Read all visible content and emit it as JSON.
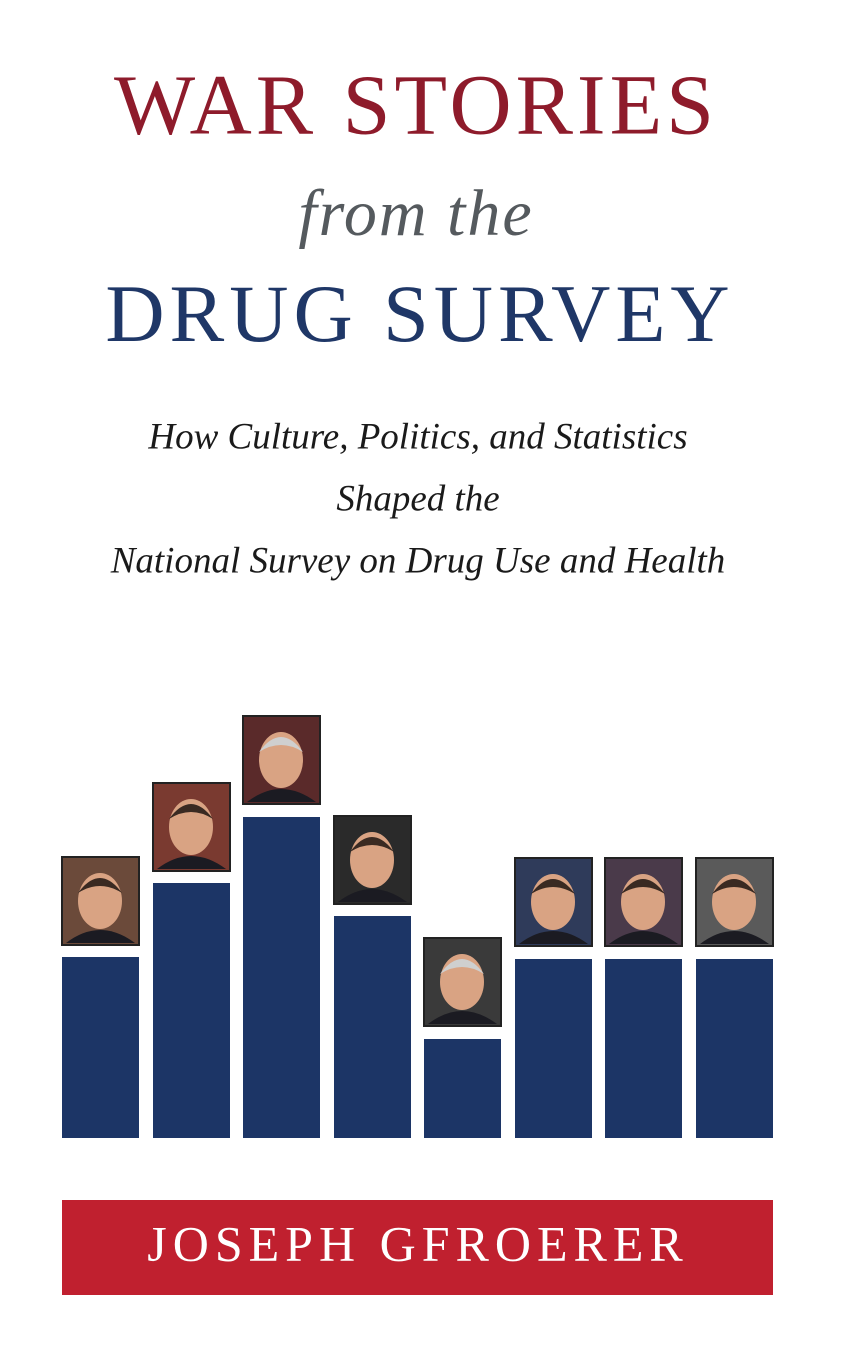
{
  "cover": {
    "title": {
      "line1": "WAR STORIES",
      "line2": "from the",
      "line3": "DRUG SURVEY"
    },
    "subtitle": [
      "How Culture, Politics, and Statistics",
      "Shaped the",
      "National Survey on Drug Use and Health"
    ],
    "author": "JOSEPH GFROERER"
  }
}
